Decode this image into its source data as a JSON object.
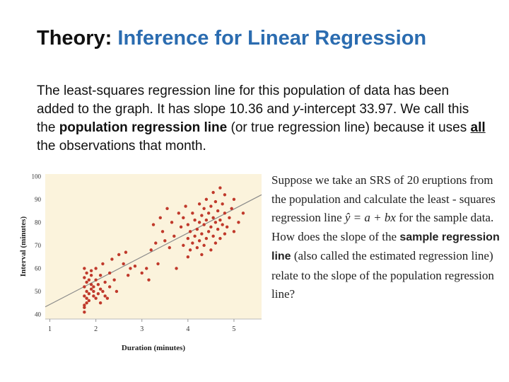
{
  "slide": {
    "title_prefix": "Theory: ",
    "title_main": "Inference for Linear Regression",
    "para_1": "The least-squares regression line for this population of data has been added to the graph. It has slope 10.36 and ",
    "para_y": "y",
    "para_2": "-intercept 33.97. We call this the ",
    "para_bold": "population regression line",
    "para_3": " (or true regression line) because it uses ",
    "para_all": "all",
    "para_4": " the observations that month.",
    "side_1": "Suppose we take an SRS of 20 eruptions from the population and calculate the least - squares regression line ",
    "side_eq": "ŷ = a + bx",
    "side_2": " for the sample data. How does the slope of the ",
    "side_bold": "sample regression line",
    "side_3": " (also called the estimated regression line) relate to the slope of the population regression line?"
  },
  "colors": {
    "accent": "#2b6cb0",
    "plot_bg": "#fbf3dc",
    "points": "#c0392b",
    "line": "#8a8a8a"
  },
  "chart_data": {
    "type": "scatter",
    "xlabel": "Duration (minutes)",
    "ylabel": "Interval (minutes)",
    "xlim": [
      0.9,
      5.6
    ],
    "ylim": [
      38,
      101
    ],
    "xticks": [
      "1",
      "2",
      "3",
      "4",
      "5"
    ],
    "yticks": [
      "40",
      "50",
      "60",
      "70",
      "80",
      "90",
      "100"
    ],
    "regression": {
      "slope": 10.36,
      "intercept": 33.97
    },
    "points": [
      [
        1.75,
        41
      ],
      [
        1.75,
        43
      ],
      [
        1.75,
        44
      ],
      [
        1.8,
        45
      ],
      [
        1.8,
        47
      ],
      [
        1.75,
        48
      ],
      [
        1.8,
        50
      ],
      [
        1.75,
        52
      ],
      [
        1.8,
        54
      ],
      [
        1.75,
        56
      ],
      [
        1.8,
        58
      ],
      [
        1.75,
        60
      ],
      [
        1.85,
        46
      ],
      [
        1.85,
        49
      ],
      [
        1.9,
        51
      ],
      [
        1.9,
        53
      ],
      [
        1.85,
        55
      ],
      [
        1.9,
        57
      ],
      [
        1.95,
        48
      ],
      [
        1.95,
        50
      ],
      [
        1.95,
        52
      ],
      [
        1.9,
        59
      ],
      [
        2.0,
        47
      ],
      [
        2.0,
        55
      ],
      [
        2.0,
        60
      ],
      [
        2.05,
        49
      ],
      [
        2.05,
        53
      ],
      [
        2.1,
        45
      ],
      [
        2.1,
        51
      ],
      [
        2.1,
        57
      ],
      [
        2.15,
        50
      ],
      [
        2.15,
        62
      ],
      [
        2.2,
        48
      ],
      [
        2.2,
        54
      ],
      [
        2.25,
        47
      ],
      [
        2.3,
        52
      ],
      [
        2.3,
        58
      ],
      [
        2.35,
        64
      ],
      [
        2.4,
        55
      ],
      [
        2.45,
        50
      ],
      [
        2.5,
        66
      ],
      [
        2.6,
        62
      ],
      [
        2.65,
        67
      ],
      [
        2.7,
        57
      ],
      [
        2.75,
        60
      ],
      [
        2.85,
        61
      ],
      [
        3.0,
        58
      ],
      [
        3.1,
        60
      ],
      [
        3.15,
        55
      ],
      [
        3.2,
        68
      ],
      [
        3.25,
        79
      ],
      [
        3.3,
        71
      ],
      [
        3.35,
        62
      ],
      [
        3.4,
        82
      ],
      [
        3.45,
        76
      ],
      [
        3.5,
        72
      ],
      [
        3.55,
        86
      ],
      [
        3.6,
        69
      ],
      [
        3.65,
        80
      ],
      [
        3.7,
        74
      ],
      [
        3.75,
        60
      ],
      [
        3.8,
        84
      ],
      [
        3.85,
        78
      ],
      [
        3.9,
        70
      ],
      [
        3.9,
        82
      ],
      [
        3.95,
        87
      ],
      [
        4.0,
        65
      ],
      [
        4.0,
        73
      ],
      [
        4.0,
        79
      ],
      [
        4.05,
        68
      ],
      [
        4.05,
        76
      ],
      [
        4.1,
        71
      ],
      [
        4.1,
        84
      ],
      [
        4.15,
        74
      ],
      [
        4.15,
        81
      ],
      [
        4.2,
        69
      ],
      [
        4.2,
        77
      ],
      [
        4.25,
        72
      ],
      [
        4.25,
        80
      ],
      [
        4.25,
        88
      ],
      [
        4.3,
        66
      ],
      [
        4.3,
        75
      ],
      [
        4.3,
        83
      ],
      [
        4.35,
        70
      ],
      [
        4.35,
        79
      ],
      [
        4.35,
        86
      ],
      [
        4.4,
        73
      ],
      [
        4.4,
        81
      ],
      [
        4.4,
        90
      ],
      [
        4.45,
        76
      ],
      [
        4.45,
        84
      ],
      [
        4.5,
        68
      ],
      [
        4.5,
        78
      ],
      [
        4.5,
        87
      ],
      [
        4.55,
        74
      ],
      [
        4.55,
        82
      ],
      [
        4.55,
        93
      ],
      [
        4.6,
        71
      ],
      [
        4.6,
        80
      ],
      [
        4.6,
        89
      ],
      [
        4.65,
        77
      ],
      [
        4.65,
        85
      ],
      [
        4.7,
        73
      ],
      [
        4.7,
        81
      ],
      [
        4.7,
        95
      ],
      [
        4.75,
        79
      ],
      [
        4.75,
        88
      ],
      [
        4.8,
        75
      ],
      [
        4.8,
        84
      ],
      [
        4.8,
        92
      ],
      [
        4.85,
        78
      ],
      [
        4.9,
        82
      ],
      [
        4.95,
        86
      ],
      [
        5.0,
        76
      ],
      [
        5.0,
        90
      ],
      [
        5.1,
        80
      ],
      [
        5.2,
        84
      ]
    ]
  }
}
